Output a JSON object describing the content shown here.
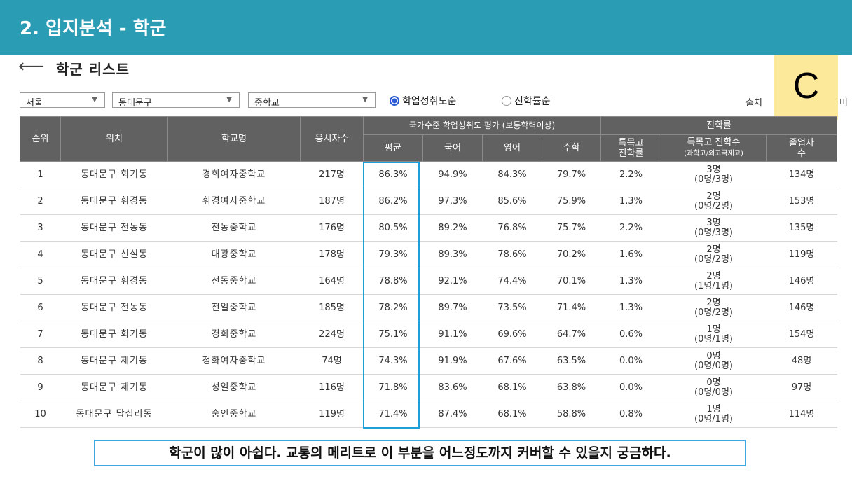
{
  "header": {
    "title": "2. 입지분석 - 학군"
  },
  "page": {
    "back_icon": "left-arrow-icon",
    "list_title": "학군 리스트",
    "grade_letter": "C"
  },
  "filters": {
    "region": "서울",
    "district": "동대문구",
    "school_type": "중학교",
    "sort_options": [
      {
        "label": "학업성취도순",
        "selected": true
      },
      {
        "label": "진학률순",
        "selected": false
      }
    ],
    "source_label": "출처",
    "source_tail": "미"
  },
  "table": {
    "headers": {
      "rank": "순위",
      "location": "위치",
      "school": "학교명",
      "applicants": "응시자수",
      "achievement_group": "국가수준 학업성취도 평가 (보통학력이상)",
      "avg": "평균",
      "korean": "국어",
      "english": "영어",
      "math": "수학",
      "advancement_group": "진학률",
      "special_rate": [
        "특목고",
        "진학률"
      ],
      "special_count": "특목고 진학수",
      "special_count_sub": "(과학고/외고국제고)",
      "graduates": [
        "졸업자",
        "수"
      ]
    },
    "rows": [
      {
        "rank": "1",
        "location": "동대문구 회기동",
        "school": "경희여자중학교",
        "applicants": "217명",
        "avg": "86.3%",
        "korean": "94.9%",
        "english": "84.3%",
        "math": "79.7%",
        "special_rate": "2.2%",
        "special_count": "3명",
        "special_detail": "(0명/3명)",
        "graduates": "134명"
      },
      {
        "rank": "2",
        "location": "동대문구 휘경동",
        "school": "휘경여자중학교",
        "applicants": "187명",
        "avg": "86.2%",
        "korean": "97.3%",
        "english": "85.6%",
        "math": "75.9%",
        "special_rate": "1.3%",
        "special_count": "2명",
        "special_detail": "(0명/2명)",
        "graduates": "153명"
      },
      {
        "rank": "3",
        "location": "동대문구 전농동",
        "school": "전농중학교",
        "applicants": "176명",
        "avg": "80.5%",
        "korean": "89.2%",
        "english": "76.8%",
        "math": "75.7%",
        "special_rate": "2.2%",
        "special_count": "3명",
        "special_detail": "(0명/3명)",
        "graduates": "135명"
      },
      {
        "rank": "4",
        "location": "동대문구 신설동",
        "school": "대광중학교",
        "applicants": "178명",
        "avg": "79.3%",
        "korean": "89.3%",
        "english": "78.6%",
        "math": "70.2%",
        "special_rate": "1.6%",
        "special_count": "2명",
        "special_detail": "(0명/2명)",
        "graduates": "119명"
      },
      {
        "rank": "5",
        "location": "동대문구 휘경동",
        "school": "전동중학교",
        "applicants": "164명",
        "avg": "78.8%",
        "korean": "92.1%",
        "english": "74.4%",
        "math": "70.1%",
        "special_rate": "1.3%",
        "special_count": "2명",
        "special_detail": "(1명/1명)",
        "graduates": "146명"
      },
      {
        "rank": "6",
        "location": "동대문구 전농동",
        "school": "전일중학교",
        "applicants": "185명",
        "avg": "78.2%",
        "korean": "89.7%",
        "english": "73.5%",
        "math": "71.4%",
        "special_rate": "1.3%",
        "special_count": "2명",
        "special_detail": "(0명/2명)",
        "graduates": "146명"
      },
      {
        "rank": "7",
        "location": "동대문구 회기동",
        "school": "경희중학교",
        "applicants": "224명",
        "avg": "75.1%",
        "korean": "91.1%",
        "english": "69.6%",
        "math": "64.7%",
        "special_rate": "0.6%",
        "special_count": "1명",
        "special_detail": "(0명/1명)",
        "graduates": "154명"
      },
      {
        "rank": "8",
        "location": "동대문구 제기동",
        "school": "정화여자중학교",
        "applicants": "74명",
        "avg": "74.3%",
        "korean": "91.9%",
        "english": "67.6%",
        "math": "63.5%",
        "special_rate": "0.0%",
        "special_count": "0명",
        "special_detail": "(0명/0명)",
        "graduates": "48명"
      },
      {
        "rank": "9",
        "location": "동대문구 제기동",
        "school": "성일중학교",
        "applicants": "116명",
        "avg": "71.8%",
        "korean": "83.6%",
        "english": "68.1%",
        "math": "63.8%",
        "special_rate": "0.0%",
        "special_count": "0명",
        "special_detail": "(0명/0명)",
        "graduates": "97명"
      },
      {
        "rank": "10",
        "location": "동대문구 답십리동",
        "school": "숭인중학교",
        "applicants": "119명",
        "avg": "71.4%",
        "korean": "87.4%",
        "english": "68.1%",
        "math": "58.8%",
        "special_rate": "0.8%",
        "special_count": "1명",
        "special_detail": "(0명/1명)",
        "graduates": "114명"
      }
    ]
  },
  "caption": "학군이 많이 아쉽다. 교통의 메리트로 이 부분을 어느정도까지 커버할 수 있을지 궁금하다.",
  "colors": {
    "header_bg": "#2a9db5",
    "table_header_bg": "#616161",
    "highlight": "#1f9fd8",
    "grade_box": "#fde99a"
  }
}
